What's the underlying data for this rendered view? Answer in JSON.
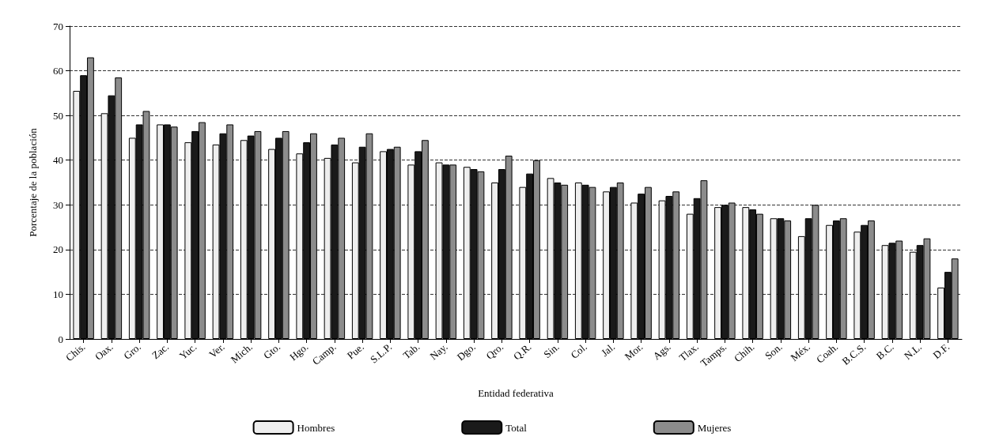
{
  "chart_data": {
    "type": "bar",
    "xlabel": "Entidad federativa",
    "ylabel": "Porcentaje de la población",
    "categories": [
      "Chis.",
      "Oax.",
      "Gro.",
      "Zac.",
      "Yuc.",
      "Ver.",
      "Mich.",
      "Gto.",
      "Hgo.",
      "Camp.",
      "Pue.",
      "S.L.P.",
      "Tab.",
      "Nay.",
      "Dgo.",
      "Qro.",
      "Q.R.",
      "Sin.",
      "Col.",
      "Jal.",
      "Mor.",
      "Ags.",
      "Tlax.",
      "Tamps.",
      "Chih.",
      "Son.",
      "Méx.",
      "Coah.",
      "B.C.S.",
      "B.C.",
      "N.L.",
      "D.F."
    ],
    "series": [
      {
        "name": "Hombres",
        "color": "#eeeeee",
        "values": [
          55.5,
          50.5,
          45,
          48,
          44,
          43.5,
          44.5,
          42.5,
          41.5,
          40.5,
          39.5,
          42,
          39,
          39.5,
          38.5,
          35,
          34,
          36,
          35,
          33,
          30.5,
          31,
          28,
          29.5,
          29.5,
          27,
          23,
          25.5,
          24,
          21,
          19.5,
          11.5
        ]
      },
      {
        "name": "Total",
        "color": "#1a1a1a",
        "values": [
          59,
          54.5,
          48,
          48,
          46.5,
          46,
          45.5,
          45,
          44,
          43.5,
          43,
          42.5,
          42,
          39,
          38,
          38,
          37,
          35,
          34.5,
          34,
          32.5,
          32,
          31.5,
          30,
          29,
          27,
          27,
          26.5,
          25.5,
          21.5,
          21,
          15
        ]
      },
      {
        "name": "Mujeres",
        "color": "#8c8c8c",
        "values": [
          63,
          58.5,
          51,
          47.5,
          48.5,
          48,
          46.5,
          46.5,
          46,
          45,
          46,
          43,
          44.5,
          39,
          37.5,
          41,
          40,
          34.5,
          34,
          35,
          34,
          33,
          35.5,
          30.5,
          28,
          26.5,
          30,
          27,
          26.5,
          22,
          22.5,
          18
        ]
      }
    ],
    "ylim": [
      0,
      70
    ],
    "yticks": [
      0,
      10,
      20,
      30,
      40,
      50,
      60,
      70
    ],
    "grid": "y",
    "legend": "bottom"
  }
}
